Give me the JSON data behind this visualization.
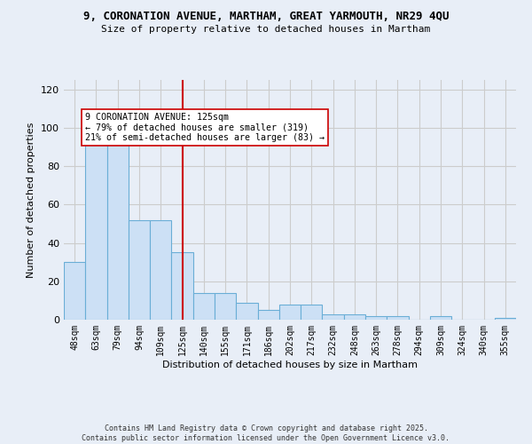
{
  "title_line1": "9, CORONATION AVENUE, MARTHAM, GREAT YARMOUTH, NR29 4QU",
  "title_line2": "Size of property relative to detached houses in Martham",
  "xlabel": "Distribution of detached houses by size in Martham",
  "ylabel": "Number of detached properties",
  "categories": [
    "48sqm",
    "63sqm",
    "79sqm",
    "94sqm",
    "109sqm",
    "125sqm",
    "140sqm",
    "155sqm",
    "171sqm",
    "186sqm",
    "202sqm",
    "217sqm",
    "232sqm",
    "248sqm",
    "263sqm",
    "278sqm",
    "294sqm",
    "309sqm",
    "324sqm",
    "340sqm",
    "355sqm"
  ],
  "values": [
    30,
    93,
    93,
    52,
    52,
    35,
    14,
    14,
    9,
    5,
    8,
    8,
    3,
    3,
    2,
    2,
    0,
    2,
    0,
    0,
    1
  ],
  "bar_color": "#cce0f5",
  "bar_edge_color": "#6aaed6",
  "vline_x": 5,
  "vline_color": "#cc0000",
  "annotation_text": "9 CORONATION AVENUE: 125sqm\n← 79% of detached houses are smaller (319)\n21% of semi-detached houses are larger (83) →",
  "annotation_box_color": "white",
  "annotation_box_edge": "#cc0000",
  "ylim": [
    0,
    125
  ],
  "yticks": [
    0,
    20,
    40,
    60,
    80,
    100,
    120
  ],
  "grid_color": "#cccccc",
  "bg_color": "#e8eef7",
  "footer_line1": "Contains HM Land Registry data © Crown copyright and database right 2025.",
  "footer_line2": "Contains public sector information licensed under the Open Government Licence v3.0."
}
